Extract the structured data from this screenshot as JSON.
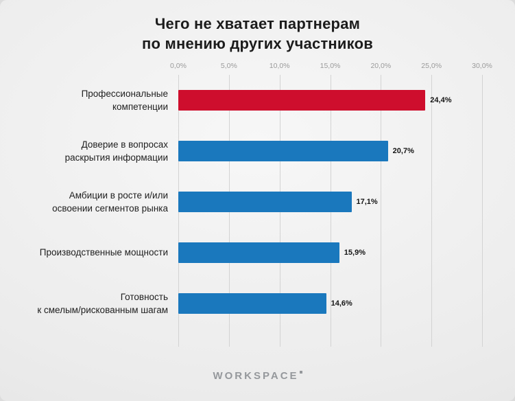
{
  "title": "Чего не хватает партнерам\nпо мнению других участников",
  "footer": {
    "logo_text": "WORKSPACE"
  },
  "chart_data": {
    "type": "bar",
    "orientation": "horizontal",
    "title": "Чего не хватает партнерам по мнению других участников",
    "categories": [
      "Профессиональные\nкомпетенции",
      "Доверие в вопросах\nраскрытия информации",
      "Амбиции в росте и/или\nосвоении сегментов рынка",
      "Производственные мощности",
      "Готовность\nк смелым/рискованным шагам"
    ],
    "values": [
      24.4,
      20.7,
      17.1,
      15.9,
      14.6
    ],
    "value_labels": [
      "24,4%",
      "20,7%",
      "17,1%",
      "15,9%",
      "14,6%"
    ],
    "xlim": [
      0,
      30
    ],
    "x_ticks": [
      0,
      5,
      10,
      15,
      20,
      25,
      30
    ],
    "x_tick_labels": [
      "0,0%",
      "5,0%",
      "10,0%",
      "15,0%",
      "20,0%",
      "25,0%",
      "30,0%"
    ],
    "bar_colors": [
      "#ce0e2d",
      "#1a78bd",
      "#1a78bd",
      "#1a78bd",
      "#1a78bd"
    ],
    "highlight_color": "#ce0e2d",
    "default_color": "#1a78bd",
    "grid": true,
    "legend": false
  }
}
